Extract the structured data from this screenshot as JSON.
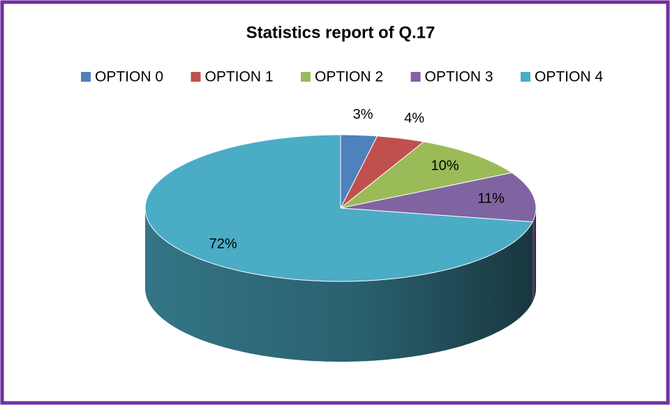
{
  "chart_data": {
    "type": "pie",
    "title": "Statistics report of Q.17",
    "categories": [
      "OPTION 0",
      "OPTION 1",
      "OPTION 2",
      "OPTION 3",
      "OPTION 4"
    ],
    "values": [
      3,
      4,
      10,
      11,
      72
    ],
    "value_labels": [
      "3%",
      "4%",
      "10%",
      "11%",
      "72%"
    ],
    "colors": [
      "#4f81bd",
      "#c0504d",
      "#9bbb59",
      "#8064a2",
      "#4bacc6"
    ],
    "legend": "top"
  }
}
